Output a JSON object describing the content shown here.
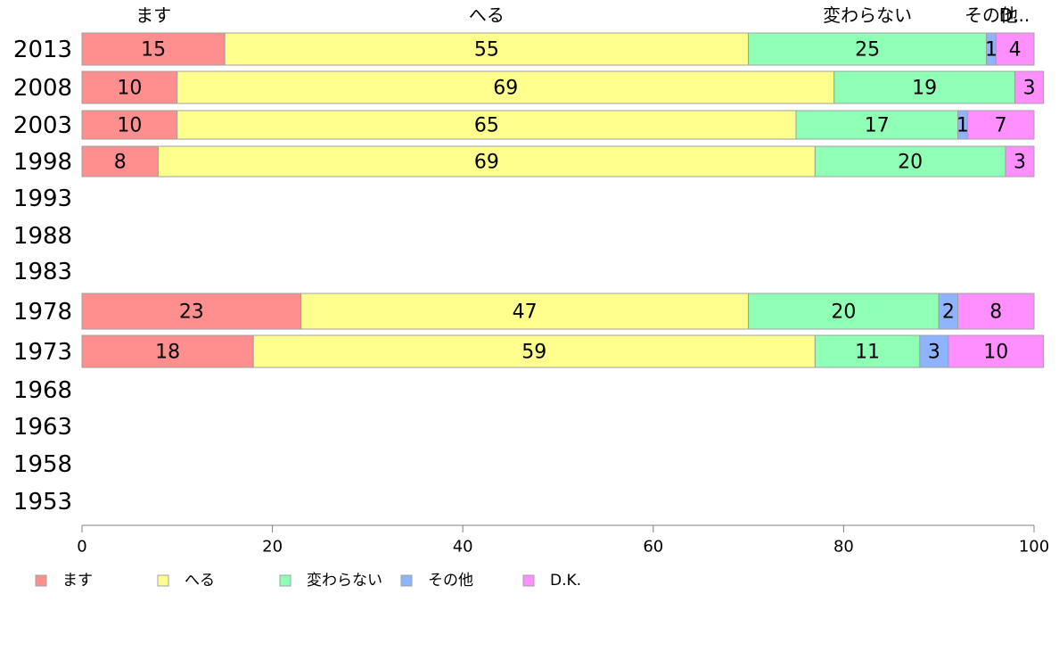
{
  "chart_data": {
    "type": "bar",
    "orientation": "horizontal",
    "stacked": true,
    "categories": [
      "2013",
      "2008",
      "2003",
      "1998",
      "1993",
      "1988",
      "1983",
      "1978",
      "1973",
      "1968",
      "1963",
      "1958",
      "1953"
    ],
    "series": [
      {
        "name": "ます",
        "color": "#ff8e8e",
        "values": [
          15,
          10,
          10,
          8,
          null,
          null,
          null,
          23,
          18,
          null,
          null,
          null,
          null
        ]
      },
      {
        "name": "へる",
        "color": "#ffff8e",
        "values": [
          55,
          69,
          65,
          69,
          null,
          null,
          null,
          47,
          59,
          null,
          null,
          null,
          null
        ]
      },
      {
        "name": "変わらない",
        "color": "#8effb4",
        "values": [
          25,
          19,
          17,
          20,
          null,
          null,
          null,
          20,
          11,
          null,
          null,
          null,
          null
        ]
      },
      {
        "name": "その他",
        "color": "#8eb4ff",
        "values": [
          1,
          0,
          1,
          0,
          null,
          null,
          null,
          2,
          3,
          null,
          null,
          null,
          null
        ]
      },
      {
        "name": "D.K.",
        "color": "#ff8eff",
        "values": [
          4,
          3,
          7,
          3,
          null,
          null,
          null,
          8,
          10,
          null,
          null,
          null,
          null
        ]
      }
    ],
    "top_labels": [
      "ます",
      "へる",
      "変わらない",
      "その他",
      "D..."
    ],
    "xlim": [
      0,
      100
    ],
    "xticks": [
      "0",
      "20",
      "40",
      "60",
      "80",
      "100"
    ],
    "grid": false,
    "legend_position": "bottom"
  }
}
